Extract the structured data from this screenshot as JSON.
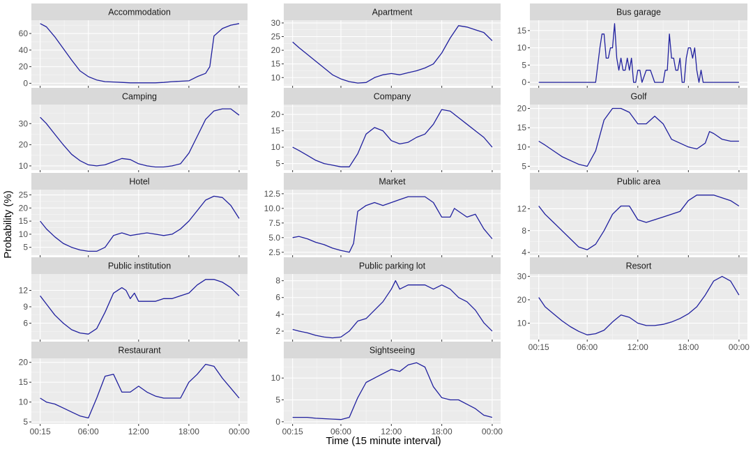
{
  "colors": {
    "line": "#1f1f9e",
    "panel": "#ebebeb",
    "strip": "#d9d9d9"
  },
  "chart_data": {
    "type": "line",
    "xlabel": "Time (15 minute interval)",
    "ylabel": "Probability (%)",
    "x_tick_labels": [
      "00:15",
      "06:00",
      "12:00",
      "18:00",
      "00:00"
    ],
    "x_tick_hours": [
      0.25,
      6,
      12,
      18,
      24
    ],
    "grid": true,
    "facets": [
      {
        "name": "Accommodation",
        "ylim": [
          -3,
          76
        ],
        "yticks": [
          0,
          20,
          40,
          60
        ],
        "ytick_labels": [
          "0",
          "20",
          "40",
          "60"
        ],
        "x": [
          0.25,
          1,
          2,
          3,
          4,
          5,
          6,
          7,
          8,
          9,
          10,
          11,
          12,
          13,
          14,
          15,
          16,
          17,
          18,
          19,
          20,
          20.5,
          21,
          22,
          23,
          24
        ],
        "y": [
          72,
          68,
          56,
          42,
          28,
          15,
          8,
          4,
          2,
          1.5,
          1,
          0.5,
          0.5,
          0.5,
          0.5,
          1,
          2,
          2.5,
          3,
          8,
          12,
          20,
          57,
          66,
          70,
          72
        ]
      },
      {
        "name": "Apartment",
        "ylim": [
          7,
          31
        ],
        "yticks": [
          10,
          15,
          20,
          25,
          30
        ],
        "ytick_labels": [
          "10",
          "15",
          "20",
          "25",
          "30"
        ],
        "x": [
          0.25,
          1,
          2,
          3,
          4,
          5,
          6,
          7,
          8,
          9,
          10,
          11,
          12,
          13,
          14,
          15,
          16,
          17,
          18,
          19,
          20,
          21,
          22,
          23,
          24
        ],
        "y": [
          23,
          21,
          18.5,
          16,
          13.5,
          11,
          9.5,
          8.5,
          8,
          8.2,
          10,
          11,
          11.5,
          11,
          11.8,
          12.5,
          13.5,
          15,
          19,
          24.5,
          29,
          28.5,
          27.5,
          26.5,
          23.5
        ]
      },
      {
        "name": "Bus garage",
        "ylim": [
          -1,
          18
        ],
        "yticks": [
          0,
          5,
          10,
          15
        ],
        "ytick_labels": [
          "0",
          "5",
          "10",
          "15"
        ],
        "x": [
          0.25,
          7,
          7.5,
          7.75,
          8,
          8.25,
          8.5,
          8.75,
          9,
          9.25,
          9.5,
          9.75,
          10,
          10.25,
          10.5,
          10.75,
          11,
          11.25,
          11.5,
          11.75,
          12,
          12.25,
          12.5,
          13,
          13.5,
          14,
          14.25,
          15,
          15.25,
          15.5,
          15.75,
          16,
          16.25,
          16.5,
          16.75,
          17,
          17.25,
          17.5,
          17.75,
          18,
          18.25,
          18.5,
          18.75,
          19,
          19.25,
          19.5,
          19.75,
          20,
          20.25,
          20.5,
          21,
          24
        ],
        "y": [
          0,
          0,
          10,
          14,
          14,
          7,
          7,
          10,
          10,
          17,
          7,
          3.5,
          7,
          3.5,
          3.5,
          7,
          3.5,
          7,
          0,
          0,
          3.5,
          3.5,
          0,
          3.5,
          3.5,
          0,
          0,
          0,
          3.5,
          3.5,
          14,
          7,
          7,
          3.5,
          3.5,
          7,
          0,
          0,
          7,
          10,
          10,
          7,
          10,
          3.5,
          0,
          3.5,
          0,
          0,
          0,
          0,
          0,
          0
        ]
      },
      {
        "name": "Camping",
        "ylim": [
          8,
          39
        ],
        "yticks": [
          10,
          20,
          30
        ],
        "ytick_labels": [
          "10",
          "20",
          "30"
        ],
        "x": [
          0.25,
          1,
          2,
          3,
          4,
          5,
          6,
          7,
          8,
          9,
          10,
          11,
          12,
          13,
          14,
          15,
          16,
          17,
          18,
          19,
          20,
          21,
          22,
          23,
          24
        ],
        "y": [
          33,
          30,
          25,
          20,
          15.5,
          12.5,
          10.5,
          10,
          10.5,
          12,
          13.5,
          13,
          11,
          10,
          9.5,
          9.5,
          10,
          11,
          16,
          24,
          32,
          36,
          37,
          37,
          34
        ]
      },
      {
        "name": "Company",
        "ylim": [
          3,
          23
        ],
        "yticks": [
          5,
          10,
          15,
          20
        ],
        "ytick_labels": [
          "5",
          "10",
          "15",
          "20"
        ],
        "x": [
          0.25,
          1,
          2,
          3,
          4,
          5,
          6,
          7,
          8,
          9,
          10,
          11,
          12,
          13,
          14,
          15,
          16,
          17,
          18,
          19,
          20,
          21,
          22,
          23,
          24
        ],
        "y": [
          10,
          9,
          7.5,
          6,
          5,
          4.5,
          4,
          4,
          8,
          14,
          16,
          15,
          12,
          11,
          11.5,
          13,
          14,
          17,
          21.5,
          21,
          19,
          17,
          15,
          13,
          10
        ]
      },
      {
        "name": "Golf",
        "ylim": [
          4,
          21
        ],
        "yticks": [
          5,
          10,
          15,
          20
        ],
        "ytick_labels": [
          "5",
          "10",
          "15",
          "20"
        ],
        "x": [
          0.25,
          1,
          2,
          3,
          4,
          5,
          6,
          7,
          8,
          9,
          10,
          11,
          12,
          13,
          14,
          15,
          16,
          17,
          18,
          19,
          20,
          20.5,
          21,
          22,
          23,
          24
        ],
        "y": [
          11.5,
          10.5,
          9,
          7.5,
          6.5,
          5.5,
          5,
          9,
          17,
          20,
          20,
          19,
          16,
          16,
          18,
          16,
          12,
          11,
          10,
          9.5,
          11,
          14,
          13.5,
          12,
          11.5,
          11.5
        ]
      },
      {
        "name": "Hotel",
        "ylim": [
          2,
          27
        ],
        "yticks": [
          5,
          10,
          15,
          20,
          25
        ],
        "ytick_labels": [
          "5",
          "10",
          "15",
          "20",
          "25"
        ],
        "x": [
          0.25,
          1,
          2,
          3,
          4,
          5,
          6,
          7,
          8,
          9,
          10,
          11,
          12,
          13,
          14,
          15,
          16,
          17,
          18,
          19,
          20,
          21,
          22,
          23,
          24
        ],
        "y": [
          15,
          12,
          9,
          6.5,
          5,
          4,
          3.5,
          3.5,
          5,
          9.5,
          10.5,
          9.5,
          10,
          10.5,
          10,
          9.5,
          10,
          12,
          15,
          19,
          23,
          24.5,
          24,
          21,
          16
        ]
      },
      {
        "name": "Market",
        "ylim": [
          2,
          13.2
        ],
        "yticks": [
          2.5,
          5,
          7.5,
          10,
          12.5
        ],
        "ytick_labels": [
          "2.5",
          "5.0",
          "7.5",
          "10.0",
          "12.5"
        ],
        "x": [
          0.25,
          1,
          2,
          3,
          4,
          5,
          6,
          7,
          7.5,
          8,
          9,
          10,
          11,
          12,
          13,
          14,
          15,
          16,
          17,
          18,
          19,
          19.5,
          20,
          21,
          22,
          23,
          24
        ],
        "y": [
          5,
          5.2,
          4.8,
          4.2,
          3.8,
          3.2,
          2.8,
          2.5,
          4,
          9.5,
          10.5,
          11,
          10.5,
          11,
          11.5,
          12,
          12,
          12,
          11,
          8.5,
          8.5,
          10,
          9.5,
          8.5,
          9,
          6.5,
          4.8
        ]
      },
      {
        "name": "Public area",
        "ylim": [
          3.5,
          15.5
        ],
        "yticks": [
          4,
          8,
          12
        ],
        "ytick_labels": [
          "4",
          "8",
          "12"
        ],
        "x": [
          0.25,
          1,
          2,
          3,
          4,
          5,
          6,
          7,
          8,
          9,
          10,
          11,
          12,
          13,
          14,
          15,
          16,
          17,
          18,
          19,
          20,
          21,
          22,
          23,
          24
        ],
        "y": [
          12.5,
          11,
          9.5,
          8,
          6.5,
          5,
          4.5,
          5.5,
          8,
          11,
          12.5,
          12.5,
          10,
          9.5,
          10,
          10.5,
          11,
          11.5,
          13.5,
          14.5,
          14.5,
          14.5,
          14,
          13.5,
          12.5
        ]
      },
      {
        "name": "Public institution",
        "ylim": [
          3,
          15
        ],
        "yticks": [
          6,
          9,
          12
        ],
        "ytick_labels": [
          "6",
          "9",
          "12"
        ],
        "x": [
          0.25,
          1,
          2,
          3,
          4,
          5,
          6,
          7,
          8,
          9,
          10,
          10.5,
          11,
          11.5,
          12,
          13,
          14,
          15,
          16,
          17,
          18,
          19,
          20,
          21,
          22,
          23,
          24
        ],
        "y": [
          11,
          9.5,
          7.5,
          6,
          4.8,
          4.2,
          4,
          5,
          8,
          11.5,
          12.5,
          12,
          10.5,
          11.5,
          10,
          10,
          10,
          10.5,
          10.5,
          11,
          11.5,
          13,
          14,
          14,
          13.5,
          12.5,
          11
        ]
      },
      {
        "name": "Public parking lot",
        "ylim": [
          1,
          8.8
        ],
        "yticks": [
          2,
          4,
          6,
          8
        ],
        "ytick_labels": [
          "2",
          "4",
          "6",
          "8"
        ],
        "x": [
          0.25,
          1,
          2,
          3,
          4,
          5,
          6,
          7,
          8,
          9,
          10,
          11,
          12,
          12.5,
          13,
          14,
          15,
          16,
          17,
          18,
          19,
          20,
          21,
          22,
          23,
          24
        ],
        "y": [
          2.2,
          2,
          1.8,
          1.5,
          1.3,
          1.2,
          1.3,
          2,
          3.2,
          3.5,
          4.5,
          5.5,
          7,
          8,
          7,
          7.5,
          7.5,
          7.5,
          7,
          7.5,
          7,
          6,
          5.5,
          4.5,
          3,
          2
        ]
      },
      {
        "name": "Resort",
        "ylim": [
          3,
          31
        ],
        "yticks": [
          10,
          20,
          30
        ],
        "ytick_labels": [
          "10",
          "20",
          "30"
        ],
        "x": [
          0.25,
          1,
          2,
          3,
          4,
          5,
          6,
          7,
          8,
          9,
          10,
          11,
          12,
          13,
          14,
          15,
          16,
          17,
          18,
          19,
          20,
          21,
          22,
          23,
          24
        ],
        "y": [
          21,
          17,
          14,
          11,
          8.5,
          6.5,
          5,
          5.5,
          7,
          10.5,
          13.5,
          12.5,
          10,
          9,
          9,
          9.5,
          10.5,
          12,
          14,
          17,
          22,
          28,
          30,
          28,
          22
        ]
      },
      {
        "name": "Restaurant",
        "ylim": [
          4.5,
          21
        ],
        "yticks": [
          5,
          10,
          15,
          20
        ],
        "ytick_labels": [
          "5",
          "10",
          "15",
          "20"
        ],
        "x": [
          0.25,
          1,
          2,
          3,
          4,
          5,
          6,
          7,
          8,
          9,
          10,
          11,
          12,
          13,
          14,
          15,
          16,
          17,
          18,
          19,
          20,
          21,
          22,
          23,
          24
        ],
        "y": [
          11,
          10,
          9.5,
          8.5,
          7.5,
          6.5,
          6,
          11,
          16.5,
          17,
          12.5,
          12.5,
          14,
          12.5,
          11.5,
          11,
          11,
          11,
          15,
          17,
          19.5,
          19,
          16,
          13.5,
          11
        ]
      },
      {
        "name": "Sightseeing",
        "ylim": [
          -0.5,
          14.5
        ],
        "yticks": [
          0,
          5,
          10
        ],
        "ytick_labels": [
          "0",
          "5",
          "10"
        ],
        "x": [
          0.25,
          1,
          2,
          3,
          4,
          5,
          6,
          7,
          8,
          9,
          10,
          11,
          12,
          13,
          14,
          15,
          16,
          17,
          18,
          19,
          20,
          21,
          22,
          23,
          24
        ],
        "y": [
          1,
          1,
          1,
          0.8,
          0.7,
          0.6,
          0.5,
          1,
          5.5,
          9,
          10,
          11,
          12,
          11.5,
          13,
          13.5,
          12.5,
          8,
          5.5,
          5,
          5,
          4,
          3,
          1.5,
          1
        ]
      }
    ]
  }
}
